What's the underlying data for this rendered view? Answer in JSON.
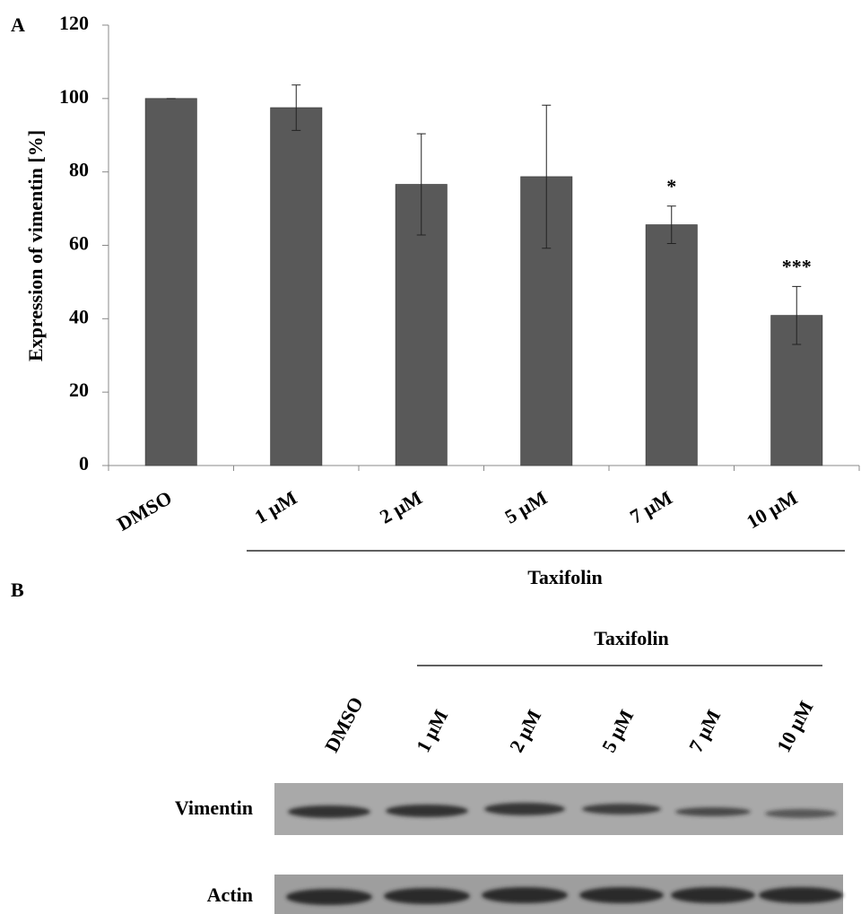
{
  "chart_data": {
    "type": "bar",
    "panel_label": "A",
    "ylabel": "Expression of vimentin [%]",
    "categories": [
      "DMSO",
      "1 µM",
      "2 µM",
      "5 µM",
      "7 µM",
      "10 µM"
    ],
    "values": [
      100,
      97.5,
      76.6,
      78.7,
      65.6,
      40.9
    ],
    "errors": [
      0,
      6.2,
      13.8,
      19.5,
      5.1,
      7.9
    ],
    "significance": [
      null,
      null,
      null,
      null,
      "*",
      "***"
    ],
    "group_label": "Taxifolin",
    "color": "#595959",
    "ylim": [
      0,
      120
    ],
    "yticks": [
      0,
      20,
      40,
      60,
      80,
      100,
      120
    ],
    "grid": false
  },
  "blot": {
    "panel_label": "B",
    "group_label": "Taxifolin",
    "lanes": [
      "DMSO",
      "1 µM",
      "2 µM",
      "5 µM",
      "7 µM",
      "10 µM"
    ],
    "rows": [
      "Vimentin",
      "Actin"
    ]
  }
}
